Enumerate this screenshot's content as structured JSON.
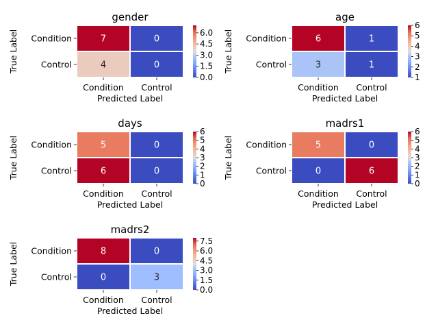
{
  "chart_data": [
    {
      "type": "heatmap",
      "title": "gender",
      "xlabel": "Predicted Label",
      "ylabel": "True Label",
      "x_categories": [
        "Condition",
        "Control"
      ],
      "y_categories": [
        "Condition",
        "Control"
      ],
      "values": [
        [
          7,
          0
        ],
        [
          4,
          0
        ]
      ],
      "colorbar": {
        "range": [
          0,
          7
        ],
        "ticks": [
          "0.0",
          "1.5",
          "3.0",
          "4.5",
          "6.0"
        ],
        "tick_values": [
          0,
          1.5,
          3,
          4.5,
          6
        ]
      },
      "colormap": "coolwarm"
    },
    {
      "type": "heatmap",
      "title": "age",
      "xlabel": "Predicted Label",
      "ylabel": "True Label",
      "x_categories": [
        "Condition",
        "Control"
      ],
      "y_categories": [
        "Condition",
        "Control"
      ],
      "values": [
        [
          6,
          1
        ],
        [
          3,
          1
        ]
      ],
      "colorbar": {
        "range": [
          1,
          6
        ],
        "ticks": [
          "1",
          "2",
          "3",
          "4",
          "5",
          "6"
        ],
        "tick_values": [
          1,
          2,
          3,
          4,
          5,
          6
        ]
      },
      "colormap": "coolwarm"
    },
    {
      "type": "heatmap",
      "title": "days",
      "xlabel": "Predicted Label",
      "ylabel": "True Label",
      "x_categories": [
        "Condition",
        "Control"
      ],
      "y_categories": [
        "Condition",
        "Control"
      ],
      "values": [
        [
          5,
          0
        ],
        [
          6,
          0
        ]
      ],
      "colorbar": {
        "range": [
          0,
          6
        ],
        "ticks": [
          "0",
          "1",
          "2",
          "3",
          "4",
          "5",
          "6"
        ],
        "tick_values": [
          0,
          1,
          2,
          3,
          4,
          5,
          6
        ]
      },
      "colormap": "coolwarm"
    },
    {
      "type": "heatmap",
      "title": "madrs1",
      "xlabel": "Predicted Label",
      "ylabel": "True Label",
      "x_categories": [
        "Condition",
        "Control"
      ],
      "y_categories": [
        "Condition",
        "Control"
      ],
      "values": [
        [
          5,
          0
        ],
        [
          0,
          6
        ]
      ],
      "colorbar": {
        "range": [
          0,
          6
        ],
        "ticks": [
          "0",
          "1",
          "2",
          "3",
          "4",
          "5",
          "6"
        ],
        "tick_values": [
          0,
          1,
          2,
          3,
          4,
          5,
          6
        ]
      },
      "colormap": "coolwarm"
    },
    {
      "type": "heatmap",
      "title": "madrs2",
      "xlabel": "Predicted Label",
      "ylabel": "True Label",
      "x_categories": [
        "Condition",
        "Control"
      ],
      "y_categories": [
        "Condition",
        "Control"
      ],
      "values": [
        [
          8,
          0
        ],
        [
          0,
          3
        ]
      ],
      "colorbar": {
        "range": [
          0,
          8
        ],
        "ticks": [
          "0.0",
          "1.5",
          "3.0",
          "4.5",
          "6.0",
          "7.5"
        ],
        "tick_values": [
          0,
          1.5,
          3,
          4.5,
          6,
          7.5
        ]
      },
      "colormap": "coolwarm"
    }
  ]
}
